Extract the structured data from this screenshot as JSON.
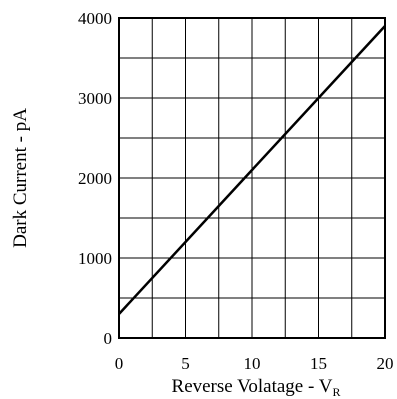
{
  "chart_data": {
    "type": "line",
    "xlabel": "Reverse  Volatage - V",
    "xlabel_sub": "R",
    "ylabel": "Dark  Current - pA",
    "xlim": [
      0,
      20
    ],
    "ylim": [
      0,
      4000
    ],
    "x_ticks": [
      "0",
      "5",
      "10",
      "15",
      "20"
    ],
    "y_ticks": [
      "0",
      "1000",
      "2000",
      "3000",
      "4000"
    ],
    "x_grid_step": 2.5,
    "y_grid_step": 500,
    "grid": true,
    "series": [
      {
        "x": [
          0,
          20
        ],
        "y": [
          300,
          3900
        ]
      }
    ]
  }
}
